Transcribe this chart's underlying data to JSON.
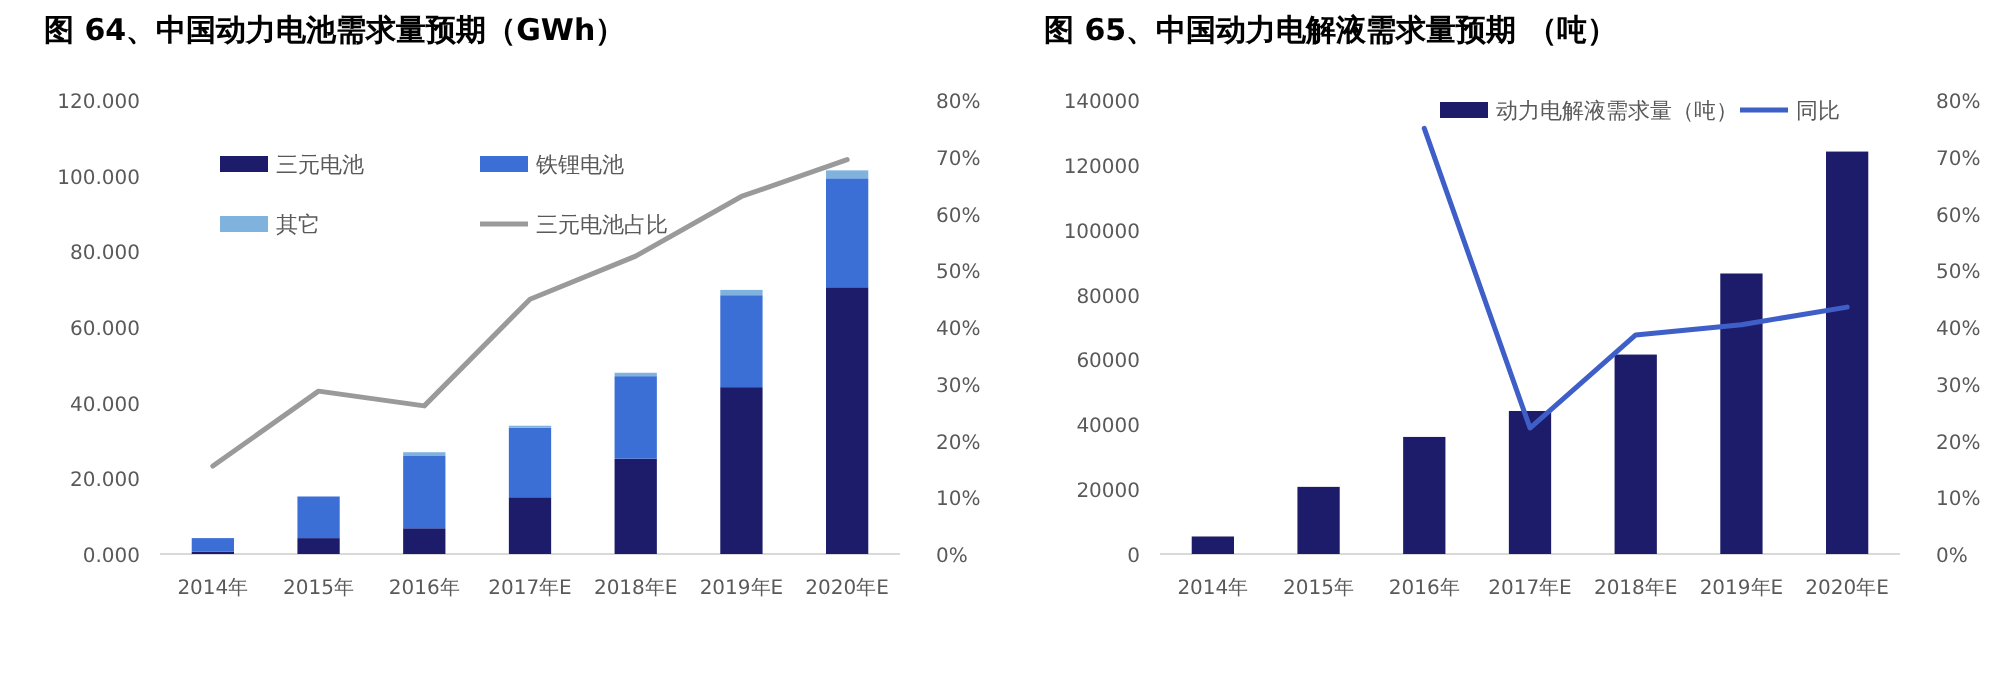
{
  "chart_data": [
    {
      "type": "bar",
      "title": "图 64、中国动力电池需求量预期（GWh）",
      "stacked": true,
      "legend": "top",
      "categories": [
        "2014年",
        "2015年",
        "2016年",
        "2017年E",
        "2018年E",
        "2019年E",
        "2020年E"
      ],
      "series": [
        {
          "name": "三元电池",
          "color": "#1c1c6b",
          "values": [
            0.6,
            4.2,
            6.8,
            15.0,
            25.2,
            44.1,
            70.5
          ]
        },
        {
          "name": "铁锂电池",
          "color": "#3b6fd6",
          "values": [
            3.6,
            11.0,
            19.1,
            18.4,
            21.8,
            24.3,
            28.8
          ]
        },
        {
          "name": "其它",
          "color": "#7fb2dc",
          "values": [
            0.0,
            0.0,
            1.0,
            0.5,
            0.9,
            1.4,
            2.1
          ]
        },
        {
          "name": "三元电池占比",
          "type": "line",
          "axis": "y2",
          "color": "#9a9a9a",
          "values": [
            15.5,
            28.7,
            26.1,
            44.9,
            52.5,
            63.0,
            69.5
          ]
        }
      ],
      "ylim": [
        0,
        120
      ],
      "yticks": [
        {
          "value": 0,
          "label": "0.000"
        },
        {
          "value": 20,
          "label": "20.000"
        },
        {
          "value": 40,
          "label": "40.000"
        },
        {
          "value": 60,
          "label": "60.000"
        },
        {
          "value": 80,
          "label": "80.000"
        },
        {
          "value": 100,
          "label": "100.000"
        },
        {
          "value": 120,
          "label": "120.000"
        }
      ],
      "y2lim": [
        0,
        80
      ],
      "y2ticks": [
        {
          "value": 0,
          "label": "0%"
        },
        {
          "value": 10,
          "label": "10%"
        },
        {
          "value": 20,
          "label": "20%"
        },
        {
          "value": 30,
          "label": "30%"
        },
        {
          "value": 40,
          "label": "40%"
        },
        {
          "value": 50,
          "label": "50%"
        },
        {
          "value": 60,
          "label": "60%"
        },
        {
          "value": 70,
          "label": "70%"
        },
        {
          "value": 80,
          "label": "80%"
        }
      ]
    },
    {
      "type": "bar",
      "title": "图 65、中国动力电解液需求量预期 （吨）",
      "legend": "top right",
      "categories": [
        "2014年",
        "2015年",
        "2016年",
        "2017年E",
        "2018年E",
        "2019年E",
        "2020年E"
      ],
      "series": [
        {
          "name": "动力电解液需求量（吨）",
          "color": "#1c1c6b",
          "values": [
            5400,
            20700,
            36100,
            44100,
            61500,
            86500,
            124100
          ]
        },
        {
          "name": "同比",
          "type": "line",
          "axis": "y2",
          "color": "#3f5fc8",
          "values": [
            null,
            null,
            75.0,
            22.2,
            38.6,
            40.4,
            43.5
          ]
        }
      ],
      "ylim": [
        0,
        140000
      ],
      "yticks": [
        0,
        20000,
        40000,
        60000,
        80000,
        100000,
        120000,
        140000
      ],
      "y2lim": [
        0,
        80
      ],
      "y2ticks": [
        {
          "value": 0,
          "label": "0%"
        },
        {
          "value": 10,
          "label": "10%"
        },
        {
          "value": 20,
          "label": "20%"
        },
        {
          "value": 30,
          "label": "30%"
        },
        {
          "value": 40,
          "label": "40%"
        },
        {
          "value": 50,
          "label": "50%"
        },
        {
          "value": 60,
          "label": "60%"
        },
        {
          "value": 70,
          "label": "70%"
        },
        {
          "value": 80,
          "label": "80%"
        }
      ]
    }
  ]
}
